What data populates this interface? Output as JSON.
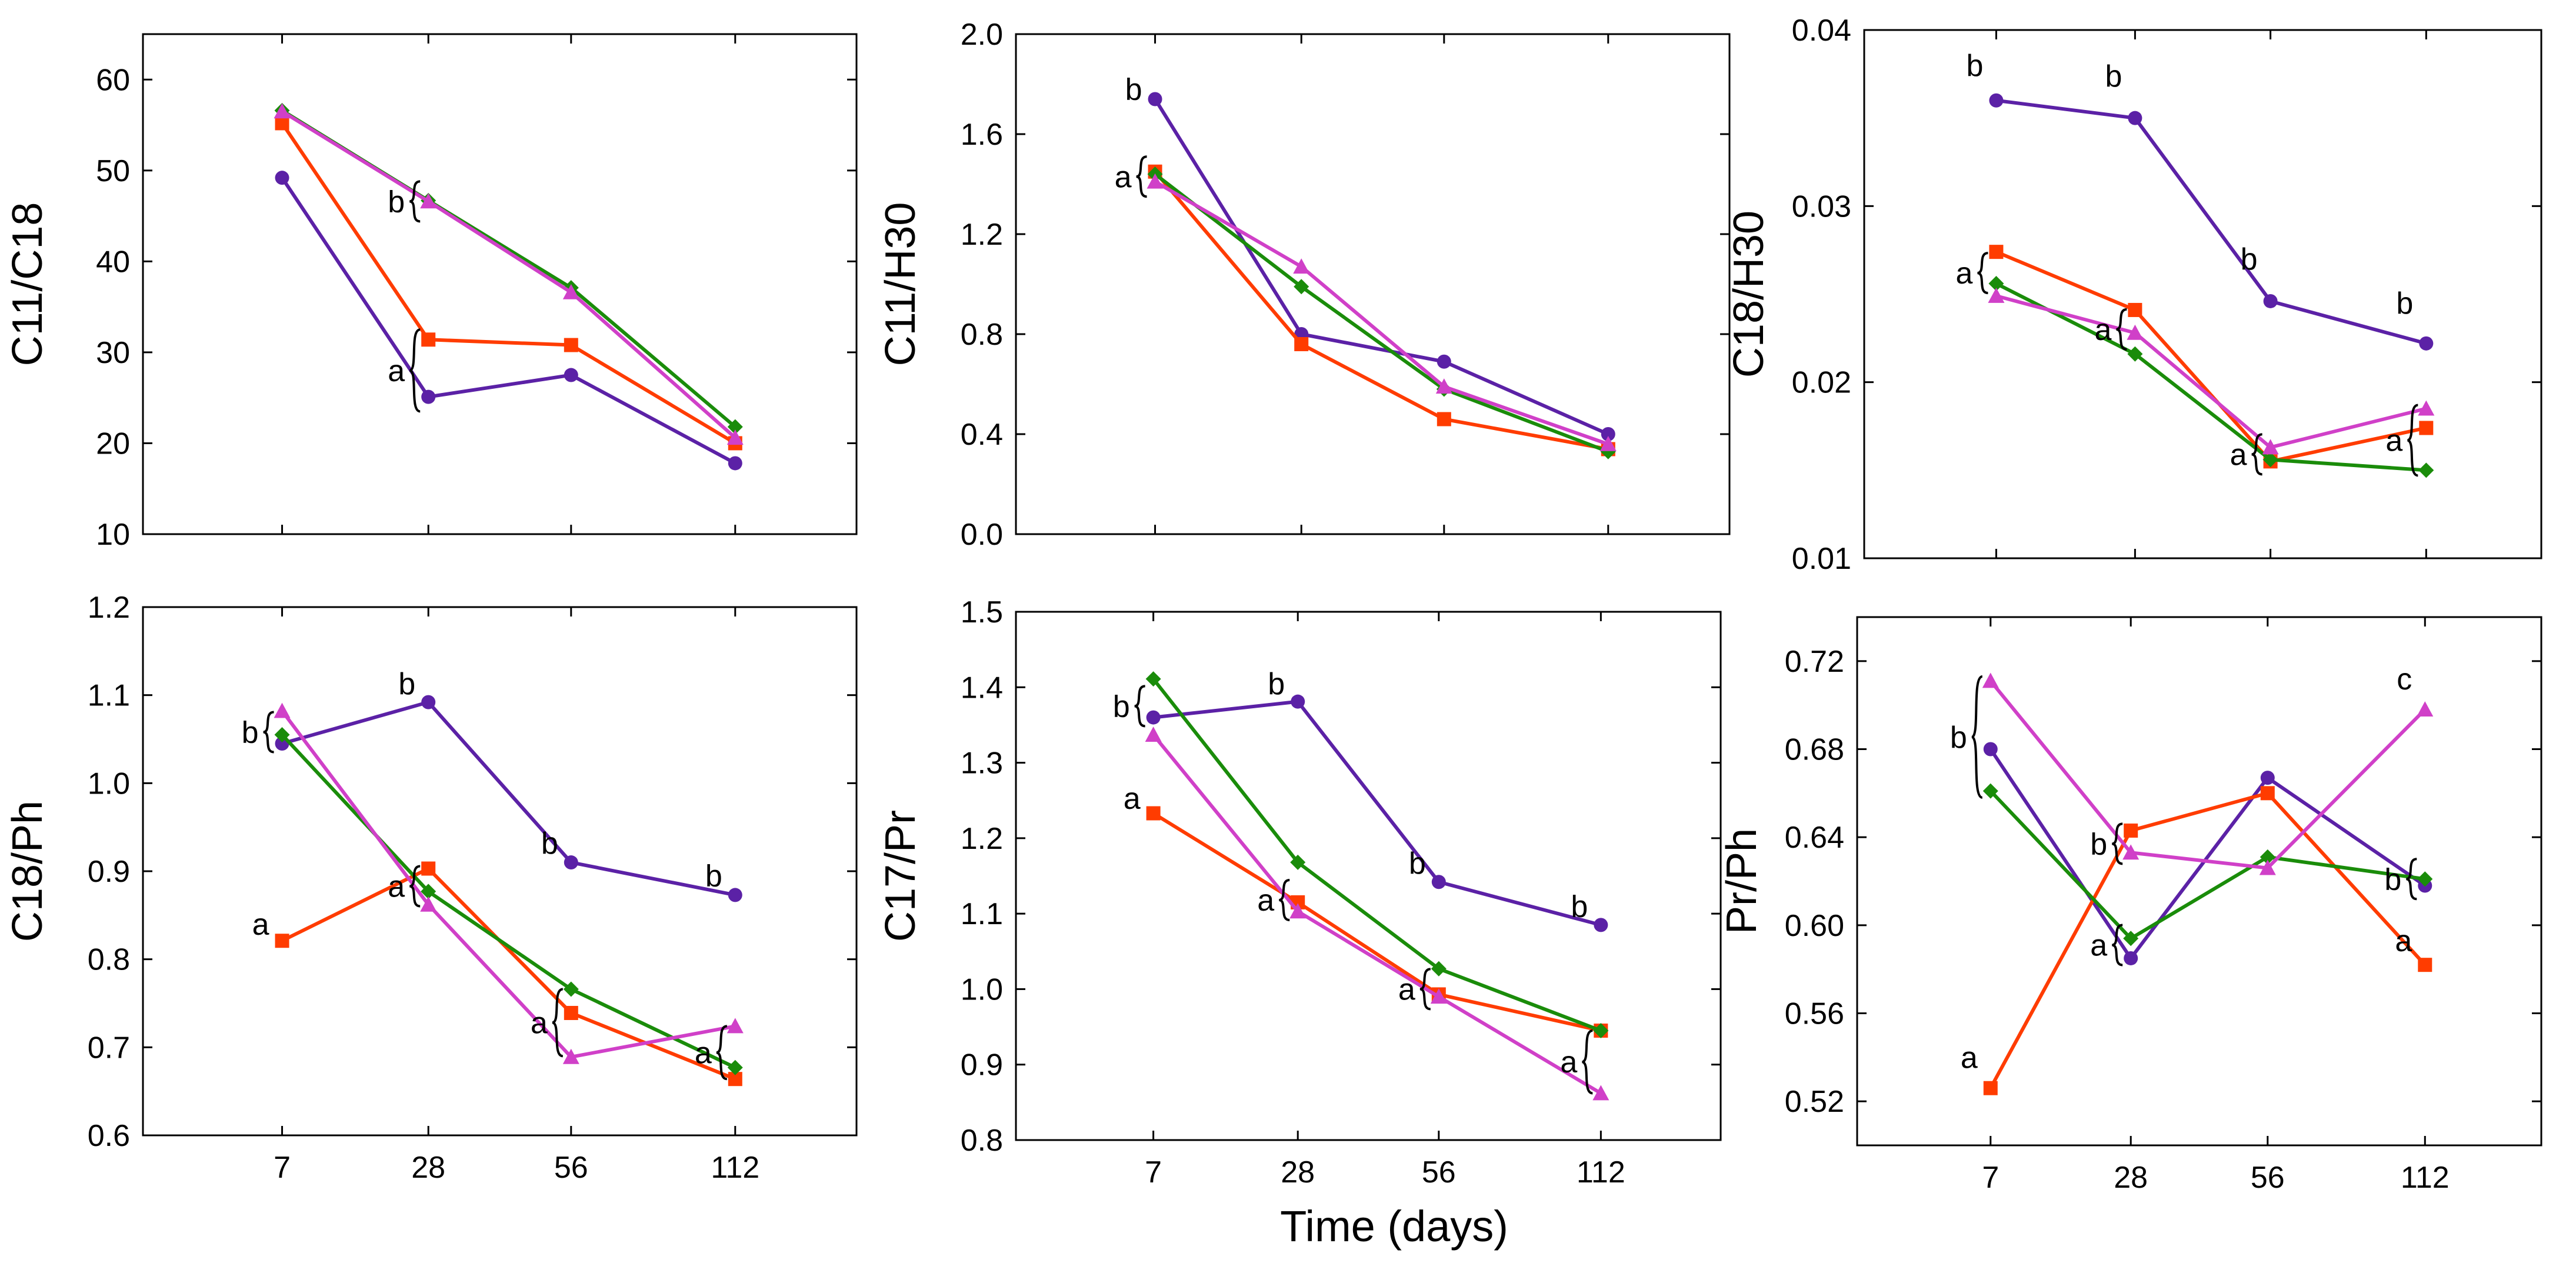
{
  "figure": {
    "shared_xlabel": "Time (days)"
  },
  "series_styles": [
    {
      "name": "series-purple",
      "color": "#5b21a6",
      "marker": "circle"
    },
    {
      "name": "series-red",
      "color": "#ff3c00",
      "marker": "square"
    },
    {
      "name": "series-green",
      "color": "#1a8c0a",
      "marker": "diamond"
    },
    {
      "name": "series-magenta",
      "color": "#d040c8",
      "marker": "triangle"
    }
  ],
  "chart_data": [
    {
      "type": "line",
      "id": "c11-c18",
      "title": "",
      "xlabel": "",
      "ylabel": "C11/C18",
      "categories": [
        "7",
        "28",
        "56",
        "112"
      ],
      "show_xticklabels": false,
      "ylim": [
        10,
        65
      ],
      "yticks": [
        10,
        20,
        30,
        40,
        50,
        60
      ],
      "ytick_labels": [
        "10",
        "20",
        "30",
        "40",
        "50",
        "60"
      ],
      "series": [
        {
          "name": "series-purple",
          "values": [
            49.2,
            25.1,
            27.5,
            17.8
          ]
        },
        {
          "name": "series-red",
          "values": [
            55.2,
            31.4,
            30.8,
            20.0
          ]
        },
        {
          "name": "series-green",
          "values": [
            56.6,
            46.7,
            37.1,
            21.8
          ]
        },
        {
          "name": "series-magenta",
          "values": [
            56.5,
            46.6,
            36.6,
            20.6
          ]
        }
      ],
      "annotations": [
        {
          "label": "b",
          "x_index": 1,
          "y": 46.6,
          "brace": "small"
        },
        {
          "label": "a",
          "x_index": 1,
          "y": 28.2,
          "brace": "large",
          "y_span": [
            23.5,
            32.5
          ]
        }
      ]
    },
    {
      "type": "line",
      "id": "c11-h30",
      "title": "",
      "xlabel": "",
      "ylabel": "C11/H30",
      "categories": [
        "7",
        "28",
        "56",
        "112"
      ],
      "show_xticklabels": false,
      "ylim": [
        0.0,
        2.0
      ],
      "yticks": [
        0.0,
        0.4,
        0.8,
        1.2,
        1.6,
        2.0
      ],
      "ytick_labels": [
        "0.0",
        "0.4",
        "0.8",
        "1.2",
        "1.6",
        "2.0"
      ],
      "series": [
        {
          "name": "series-purple",
          "values": [
            1.74,
            0.8,
            0.69,
            0.4
          ]
        },
        {
          "name": "series-red",
          "values": [
            1.45,
            0.76,
            0.46,
            0.34
          ]
        },
        {
          "name": "series-green",
          "values": [
            1.44,
            0.99,
            0.58,
            0.33
          ]
        },
        {
          "name": "series-magenta",
          "values": [
            1.41,
            1.07,
            0.59,
            0.36
          ]
        }
      ],
      "annotations": [
        {
          "label": "b",
          "x_index": 0,
          "y": 1.78,
          "brace": "none"
        },
        {
          "label": "a",
          "x_index": 0,
          "y": 1.43,
          "brace": "small"
        }
      ]
    },
    {
      "type": "line",
      "id": "c18-h30",
      "title": "",
      "xlabel": "",
      "ylabel": "C18/H30",
      "categories": [
        "7",
        "28",
        "56",
        "112"
      ],
      "show_xticklabels": false,
      "ylim": [
        0.01,
        0.04
      ],
      "yticks": [
        0.01,
        0.02,
        0.03,
        0.04
      ],
      "ytick_labels": [
        "0.01",
        "0.02",
        "0.03",
        "0.04"
      ],
      "series": [
        {
          "name": "series-purple",
          "values": [
            0.036,
            0.035,
            0.0246,
            0.0222
          ]
        },
        {
          "name": "series-red",
          "values": [
            0.0274,
            0.0241,
            0.0155,
            0.0174
          ]
        },
        {
          "name": "series-green",
          "values": [
            0.0256,
            0.0216,
            0.0156,
            0.015
          ]
        },
        {
          "name": "series-magenta",
          "values": [
            0.0249,
            0.0228,
            0.0163,
            0.0185
          ]
        }
      ],
      "annotations": [
        {
          "label": "b",
          "x_index": 0,
          "y": 0.038,
          "brace": "none"
        },
        {
          "label": "b",
          "x_index": 1,
          "y": 0.0374,
          "brace": "none"
        },
        {
          "label": "b",
          "x_index": 2,
          "y": 0.027,
          "brace": "none"
        },
        {
          "label": "b",
          "x_index": 3,
          "y": 0.0245,
          "brace": "none"
        },
        {
          "label": "a",
          "x_index": 0,
          "y": 0.0262,
          "brace": "small"
        },
        {
          "label": "a",
          "x_index": 1,
          "y": 0.023,
          "brace": "small"
        },
        {
          "label": "a",
          "x_index": 2,
          "y": 0.0159,
          "brace": "small"
        },
        {
          "label": "a",
          "x_index": 3,
          "y": 0.0167,
          "brace": "large",
          "y_span": [
            0.0147,
            0.0187
          ]
        }
      ]
    },
    {
      "type": "line",
      "id": "c18-ph",
      "title": "",
      "xlabel": "",
      "ylabel": "C18/Ph",
      "categories": [
        "7",
        "28",
        "56",
        "112"
      ],
      "show_xticklabels": true,
      "ylim": [
        0.6,
        1.2
      ],
      "yticks": [
        0.6,
        0.7,
        0.8,
        0.9,
        1.0,
        1.1,
        1.2
      ],
      "ytick_labels": [
        "0.6",
        "0.7",
        "0.8",
        "0.9",
        "1.0",
        "1.1",
        "1.2"
      ],
      "series": [
        {
          "name": "series-purple",
          "values": [
            1.045,
            1.092,
            0.91,
            0.873
          ]
        },
        {
          "name": "series-red",
          "values": [
            0.821,
            0.903,
            0.739,
            0.664
          ]
        },
        {
          "name": "series-green",
          "values": [
            1.055,
            0.877,
            0.766,
            0.677
          ]
        },
        {
          "name": "series-magenta",
          "values": [
            1.082,
            0.862,
            0.689,
            0.724
          ]
        }
      ],
      "annotations": [
        {
          "label": "b",
          "x_index": 0,
          "y": 1.058,
          "brace": "small"
        },
        {
          "label": "a",
          "x_index": 0,
          "y": 0.84,
          "brace": "none"
        },
        {
          "label": "b",
          "x_index": 1,
          "y": 1.113,
          "brace": "none"
        },
        {
          "label": "a",
          "x_index": 1,
          "y": 0.883,
          "brace": "small"
        },
        {
          "label": "b",
          "x_index": 2,
          "y": 0.932,
          "brace": "none"
        },
        {
          "label": "a",
          "x_index": 2,
          "y": 0.728,
          "brace": "large",
          "y_span": [
            0.69,
            0.766
          ]
        },
        {
          "label": "b",
          "x_index": 3,
          "y": 0.895,
          "brace": "none"
        },
        {
          "label": "a",
          "x_index": 3,
          "y": 0.692,
          "brace": "large",
          "y_span": [
            0.664,
            0.724
          ]
        }
      ]
    },
    {
      "type": "line",
      "id": "c17-pr",
      "title": "",
      "xlabel": "",
      "ylabel": "C17/Pr",
      "categories": [
        "7",
        "28",
        "56",
        "112"
      ],
      "show_xticklabels": true,
      "ylim": [
        0.8,
        1.5
      ],
      "yticks": [
        0.8,
        0.9,
        1.0,
        1.1,
        1.2,
        1.3,
        1.4,
        1.5
      ],
      "ytick_labels": [
        "0.8",
        "0.9",
        "1.0",
        "1.1",
        "1.2",
        "1.3",
        "1.4",
        "1.5"
      ],
      "series": [
        {
          "name": "series-purple",
          "values": [
            1.36,
            1.381,
            1.142,
            1.085
          ]
        },
        {
          "name": "series-red",
          "values": [
            1.233,
            1.115,
            0.993,
            0.945
          ]
        },
        {
          "name": "series-green",
          "values": [
            1.411,
            1.168,
            1.027,
            0.945
          ]
        },
        {
          "name": "series-magenta",
          "values": [
            1.337,
            1.103,
            0.99,
            0.862
          ]
        }
      ],
      "annotations": [
        {
          "label": "b",
          "x_index": 0,
          "y": 1.375,
          "brace": "small"
        },
        {
          "label": "a",
          "x_index": 0,
          "y": 1.253,
          "brace": "none"
        },
        {
          "label": "b",
          "x_index": 1,
          "y": 1.405,
          "brace": "none"
        },
        {
          "label": "a",
          "x_index": 1,
          "y": 1.118,
          "brace": "small"
        },
        {
          "label": "b",
          "x_index": 2,
          "y": 1.167,
          "brace": "none"
        },
        {
          "label": "a",
          "x_index": 2,
          "y": 1.0,
          "brace": "small"
        },
        {
          "label": "b",
          "x_index": 3,
          "y": 1.11,
          "brace": "none"
        },
        {
          "label": "a",
          "x_index": 3,
          "y": 0.906,
          "brace": "large",
          "y_span": [
            0.862,
            0.945
          ]
        }
      ]
    },
    {
      "type": "line",
      "id": "pr-ph",
      "title": "",
      "xlabel": "",
      "ylabel": "Pr/Ph",
      "categories": [
        "7",
        "28",
        "56",
        "112"
      ],
      "show_xticklabels": true,
      "ylim": [
        0.5,
        0.74
      ],
      "yticks": [
        0.52,
        0.56,
        0.6,
        0.64,
        0.68,
        0.72
      ],
      "ytick_labels": [
        "0.52",
        "0.56",
        "0.60",
        "0.64",
        "0.68",
        "0.72"
      ],
      "series": [
        {
          "name": "series-purple",
          "values": [
            0.68,
            0.585,
            0.667,
            0.618
          ]
        },
        {
          "name": "series-red",
          "values": [
            0.526,
            0.643,
            0.66,
            0.582
          ]
        },
        {
          "name": "series-green",
          "values": [
            0.661,
            0.594,
            0.631,
            0.621
          ]
        },
        {
          "name": "series-magenta",
          "values": [
            0.711,
            0.633,
            0.626,
            0.698
          ]
        }
      ],
      "annotations": [
        {
          "label": "b",
          "x_index": 0,
          "y": 0.684,
          "brace": "large",
          "y_span": [
            0.658,
            0.713
          ]
        },
        {
          "label": "a",
          "x_index": 0,
          "y": 0.54,
          "brace": "none"
        },
        {
          "label": "b",
          "x_index": 1,
          "y": 0.637,
          "brace": "small"
        },
        {
          "label": "a",
          "x_index": 1,
          "y": 0.591,
          "brace": "small"
        },
        {
          "label": "c",
          "x_index": 3,
          "y": 0.712,
          "brace": "none"
        },
        {
          "label": "b",
          "x_index": 3,
          "y": 0.621,
          "brace": "small"
        },
        {
          "label": "a",
          "x_index": 3,
          "y": 0.593,
          "brace": "none"
        }
      ]
    }
  ]
}
